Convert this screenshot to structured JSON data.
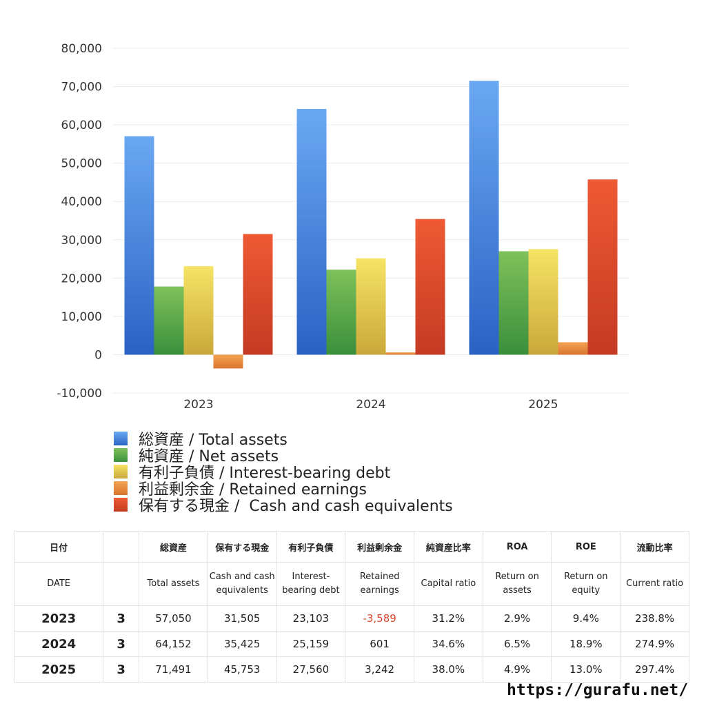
{
  "chart_data": {
    "type": "bar",
    "categories": [
      "2023",
      "2024",
      "2025"
    ],
    "ylim": [
      -10000,
      80000
    ],
    "yticks": [
      80000,
      70000,
      60000,
      50000,
      40000,
      30000,
      20000,
      10000,
      0,
      -10000
    ],
    "ytick_labels": [
      "80,000",
      "70,000",
      "60,000",
      "50,000",
      "40,000",
      "30,000",
      "20,000",
      "10,000",
      "0",
      "-10,000"
    ],
    "grid": true,
    "legend_position": "bottom",
    "series": [
      {
        "name": "総資産 / Total assets",
        "color_top": "#6aa8f2",
        "color_bottom": "#2a62c4",
        "values": [
          57050,
          64152,
          71491
        ]
      },
      {
        "name": "純資産 / Net assets",
        "color_top": "#7fc15a",
        "color_bottom": "#3a8f3c",
        "values": [
          17800,
          22200,
          27000
        ]
      },
      {
        "name": "有利子負債 / Interest-bearing debt",
        "color_top": "#f6e466",
        "color_bottom": "#c9a83a",
        "values": [
          23103,
          25159,
          27560
        ]
      },
      {
        "name": "利益剰余金 / Retained earnings",
        "color_top": "#f3a352",
        "color_bottom": "#d9742e",
        "values": [
          -3589,
          601,
          3242
        ]
      },
      {
        "name": "保有する現金 /  Cash and cash equivalents",
        "color_top": "#ee5a34",
        "color_bottom": "#c43a23",
        "values": [
          31505,
          35425,
          45753
        ]
      }
    ]
  },
  "table": {
    "header_jp": [
      "日付",
      "",
      "総資産",
      "保有する現金",
      "有利子負債",
      "利益剰余金",
      "純資産比率",
      "ROA",
      "ROE",
      "流動比率"
    ],
    "header_en": [
      "DATE",
      "",
      "Total assets",
      "Cash and cash equivalents",
      "Interest-bearing debt",
      "Retained earnings",
      "Capital ratio",
      "Return on assets",
      "Return on equity",
      "Current ratio"
    ],
    "rows": [
      {
        "year": "2023",
        "q": "3",
        "total_assets": "57,050",
        "cash": "31,505",
        "debt": "23,103",
        "retained": "-3,589",
        "capital_ratio": "31.2%",
        "roa": "2.9%",
        "roe": "9.4%",
        "current_ratio": "238.8%"
      },
      {
        "year": "2024",
        "q": "3",
        "total_assets": "64,152",
        "cash": "35,425",
        "debt": "25,159",
        "retained": "601",
        "capital_ratio": "34.6%",
        "roa": "6.5%",
        "roe": "18.9%",
        "current_ratio": "274.9%"
      },
      {
        "year": "2025",
        "q": "3",
        "total_assets": "71,491",
        "cash": "45,753",
        "debt": "27,560",
        "retained": "3,242",
        "capital_ratio": "38.0%",
        "roa": "4.9%",
        "roe": "13.0%",
        "current_ratio": "297.4%"
      }
    ]
  },
  "footer": {
    "url": "https://gurafu.net/"
  }
}
